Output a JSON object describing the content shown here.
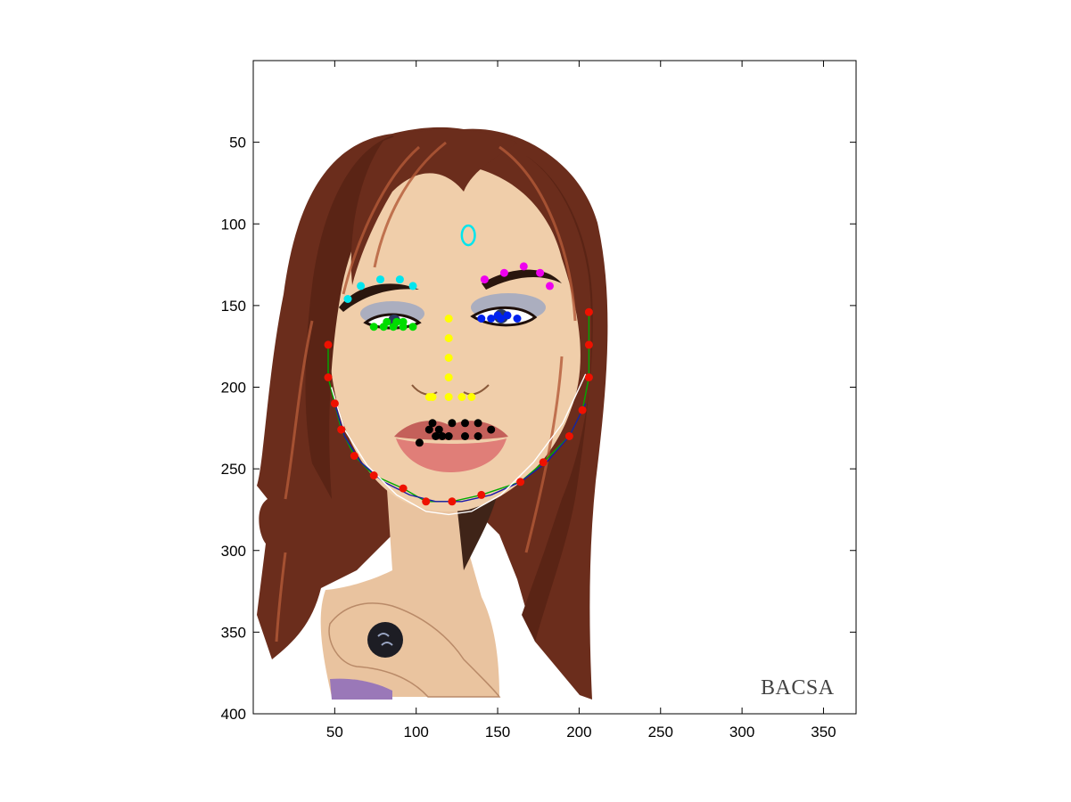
{
  "chart_data": {
    "type": "scatter",
    "title": "",
    "xlabel": "",
    "ylabel": "",
    "xlim": [
      0,
      370
    ],
    "ylim": [
      400,
      0
    ],
    "y_axis_reversed": true,
    "grid": false,
    "background": "cartoon portrait illustration of a woman with long auburn hair, displayed as an image in the axes",
    "x_ticks": [
      50,
      100,
      150,
      200,
      250,
      300,
      350
    ],
    "y_ticks": [
      50,
      100,
      150,
      200,
      250,
      300,
      350,
      400
    ],
    "watermark": "BACSA",
    "colors": {
      "hair": "#6b2d1c",
      "skin": "#f0ceaa",
      "left_eyebrow": "#00e5ee",
      "right_eyebrow": "#ee00ee",
      "left_eye": "#00dd00",
      "right_eye": "#0022ee",
      "nose": "#ffff00",
      "mouth": "#000000",
      "jaw": "#ee1100",
      "forehead_marker": "#00e5ee"
    },
    "series": [
      {
        "marker": "dot",
        "color": "#00e5ee",
        "points": [
          [
            58,
            146
          ],
          [
            66,
            138
          ],
          [
            78,
            134
          ],
          [
            90,
            134
          ],
          [
            98,
            138
          ]
        ]
      },
      {
        "marker": "dot",
        "color": "#ee00ee",
        "points": [
          [
            142,
            134
          ],
          [
            154,
            130
          ],
          [
            166,
            126
          ],
          [
            176,
            130
          ],
          [
            182,
            138
          ]
        ]
      },
      {
        "marker": "dot",
        "color": "#00dd00",
        "points": [
          [
            74,
            163
          ],
          [
            80,
            163
          ],
          [
            86,
            163
          ],
          [
            92,
            163
          ],
          [
            98,
            163
          ],
          [
            82,
            160
          ],
          [
            88,
            160
          ],
          [
            92,
            160
          ]
        ]
      },
      {
        "marker": "dot",
        "color": "#0022ee",
        "points": [
          [
            140,
            158
          ],
          [
            146,
            158
          ],
          [
            150,
            156
          ],
          [
            152,
            158
          ],
          [
            156,
            156
          ],
          [
            162,
            158
          ]
        ]
      },
      {
        "marker": "dot",
        "color": "#ffff00",
        "points": [
          [
            120,
            158
          ],
          [
            120,
            170
          ],
          [
            120,
            182
          ],
          [
            120,
            194
          ],
          [
            108,
            206
          ],
          [
            110,
            206
          ],
          [
            120,
            206
          ],
          [
            128,
            206
          ],
          [
            134,
            206
          ]
        ]
      },
      {
        "marker": "dot",
        "color": "#000000",
        "points": [
          [
            102,
            234
          ],
          [
            108,
            226
          ],
          [
            110,
            222
          ],
          [
            112,
            230
          ],
          [
            116,
            230
          ],
          [
            120,
            230
          ],
          [
            122,
            222
          ],
          [
            130,
            222
          ],
          [
            130,
            230
          ],
          [
            138,
            222
          ],
          [
            138,
            230
          ],
          [
            146,
            226
          ],
          [
            114,
            226
          ]
        ]
      },
      {
        "marker": "dot",
        "color": "#ee1100",
        "points": [
          [
            46,
            174
          ],
          [
            46,
            194
          ],
          [
            50,
            210
          ],
          [
            54,
            226
          ],
          [
            62,
            242
          ],
          [
            74,
            254
          ],
          [
            92,
            262
          ],
          [
            106,
            270
          ],
          [
            122,
            270
          ],
          [
            140,
            266
          ],
          [
            164,
            258
          ],
          [
            178,
            246
          ],
          [
            194,
            230
          ],
          [
            202,
            214
          ],
          [
            206,
            194
          ],
          [
            206,
            174
          ],
          [
            206,
            154
          ]
        ]
      }
    ],
    "curves": [
      {
        "color": "#00aa00",
        "points": [
          [
            46,
            174
          ],
          [
            46,
            194
          ],
          [
            50,
            210
          ],
          [
            54,
            226
          ],
          [
            62,
            242
          ],
          [
            74,
            254
          ],
          [
            92,
            262
          ],
          [
            106,
            270
          ],
          [
            122,
            270
          ],
          [
            140,
            266
          ],
          [
            164,
            258
          ],
          [
            178,
            246
          ],
          [
            194,
            230
          ],
          [
            202,
            214
          ],
          [
            206,
            194
          ],
          [
            206,
            174
          ],
          [
            206,
            154
          ]
        ]
      },
      {
        "color": "#1a1aaa",
        "points": [
          [
            50,
            210
          ],
          [
            56,
            230
          ],
          [
            66,
            246
          ],
          [
            80,
            258
          ],
          [
            96,
            266
          ],
          [
            112,
            270
          ],
          [
            128,
            270
          ],
          [
            146,
            266
          ],
          [
            164,
            258
          ],
          [
            180,
            246
          ],
          [
            194,
            230
          ],
          [
            204,
            210
          ]
        ]
      },
      {
        "color": "#ffffff",
        "points": [
          [
            48,
            200
          ],
          [
            56,
            226
          ],
          [
            70,
            248
          ],
          [
            88,
            266
          ],
          [
            106,
            276
          ],
          [
            120,
            278
          ],
          [
            134,
            276
          ],
          [
            152,
            266
          ],
          [
            172,
            246
          ],
          [
            190,
            222
          ],
          [
            204,
            192
          ]
        ]
      }
    ],
    "annotations": [
      {
        "shape": "ellipse",
        "color": "#00e5ee",
        "center": [
          132,
          107
        ],
        "radius": [
          4,
          6
        ]
      }
    ]
  }
}
